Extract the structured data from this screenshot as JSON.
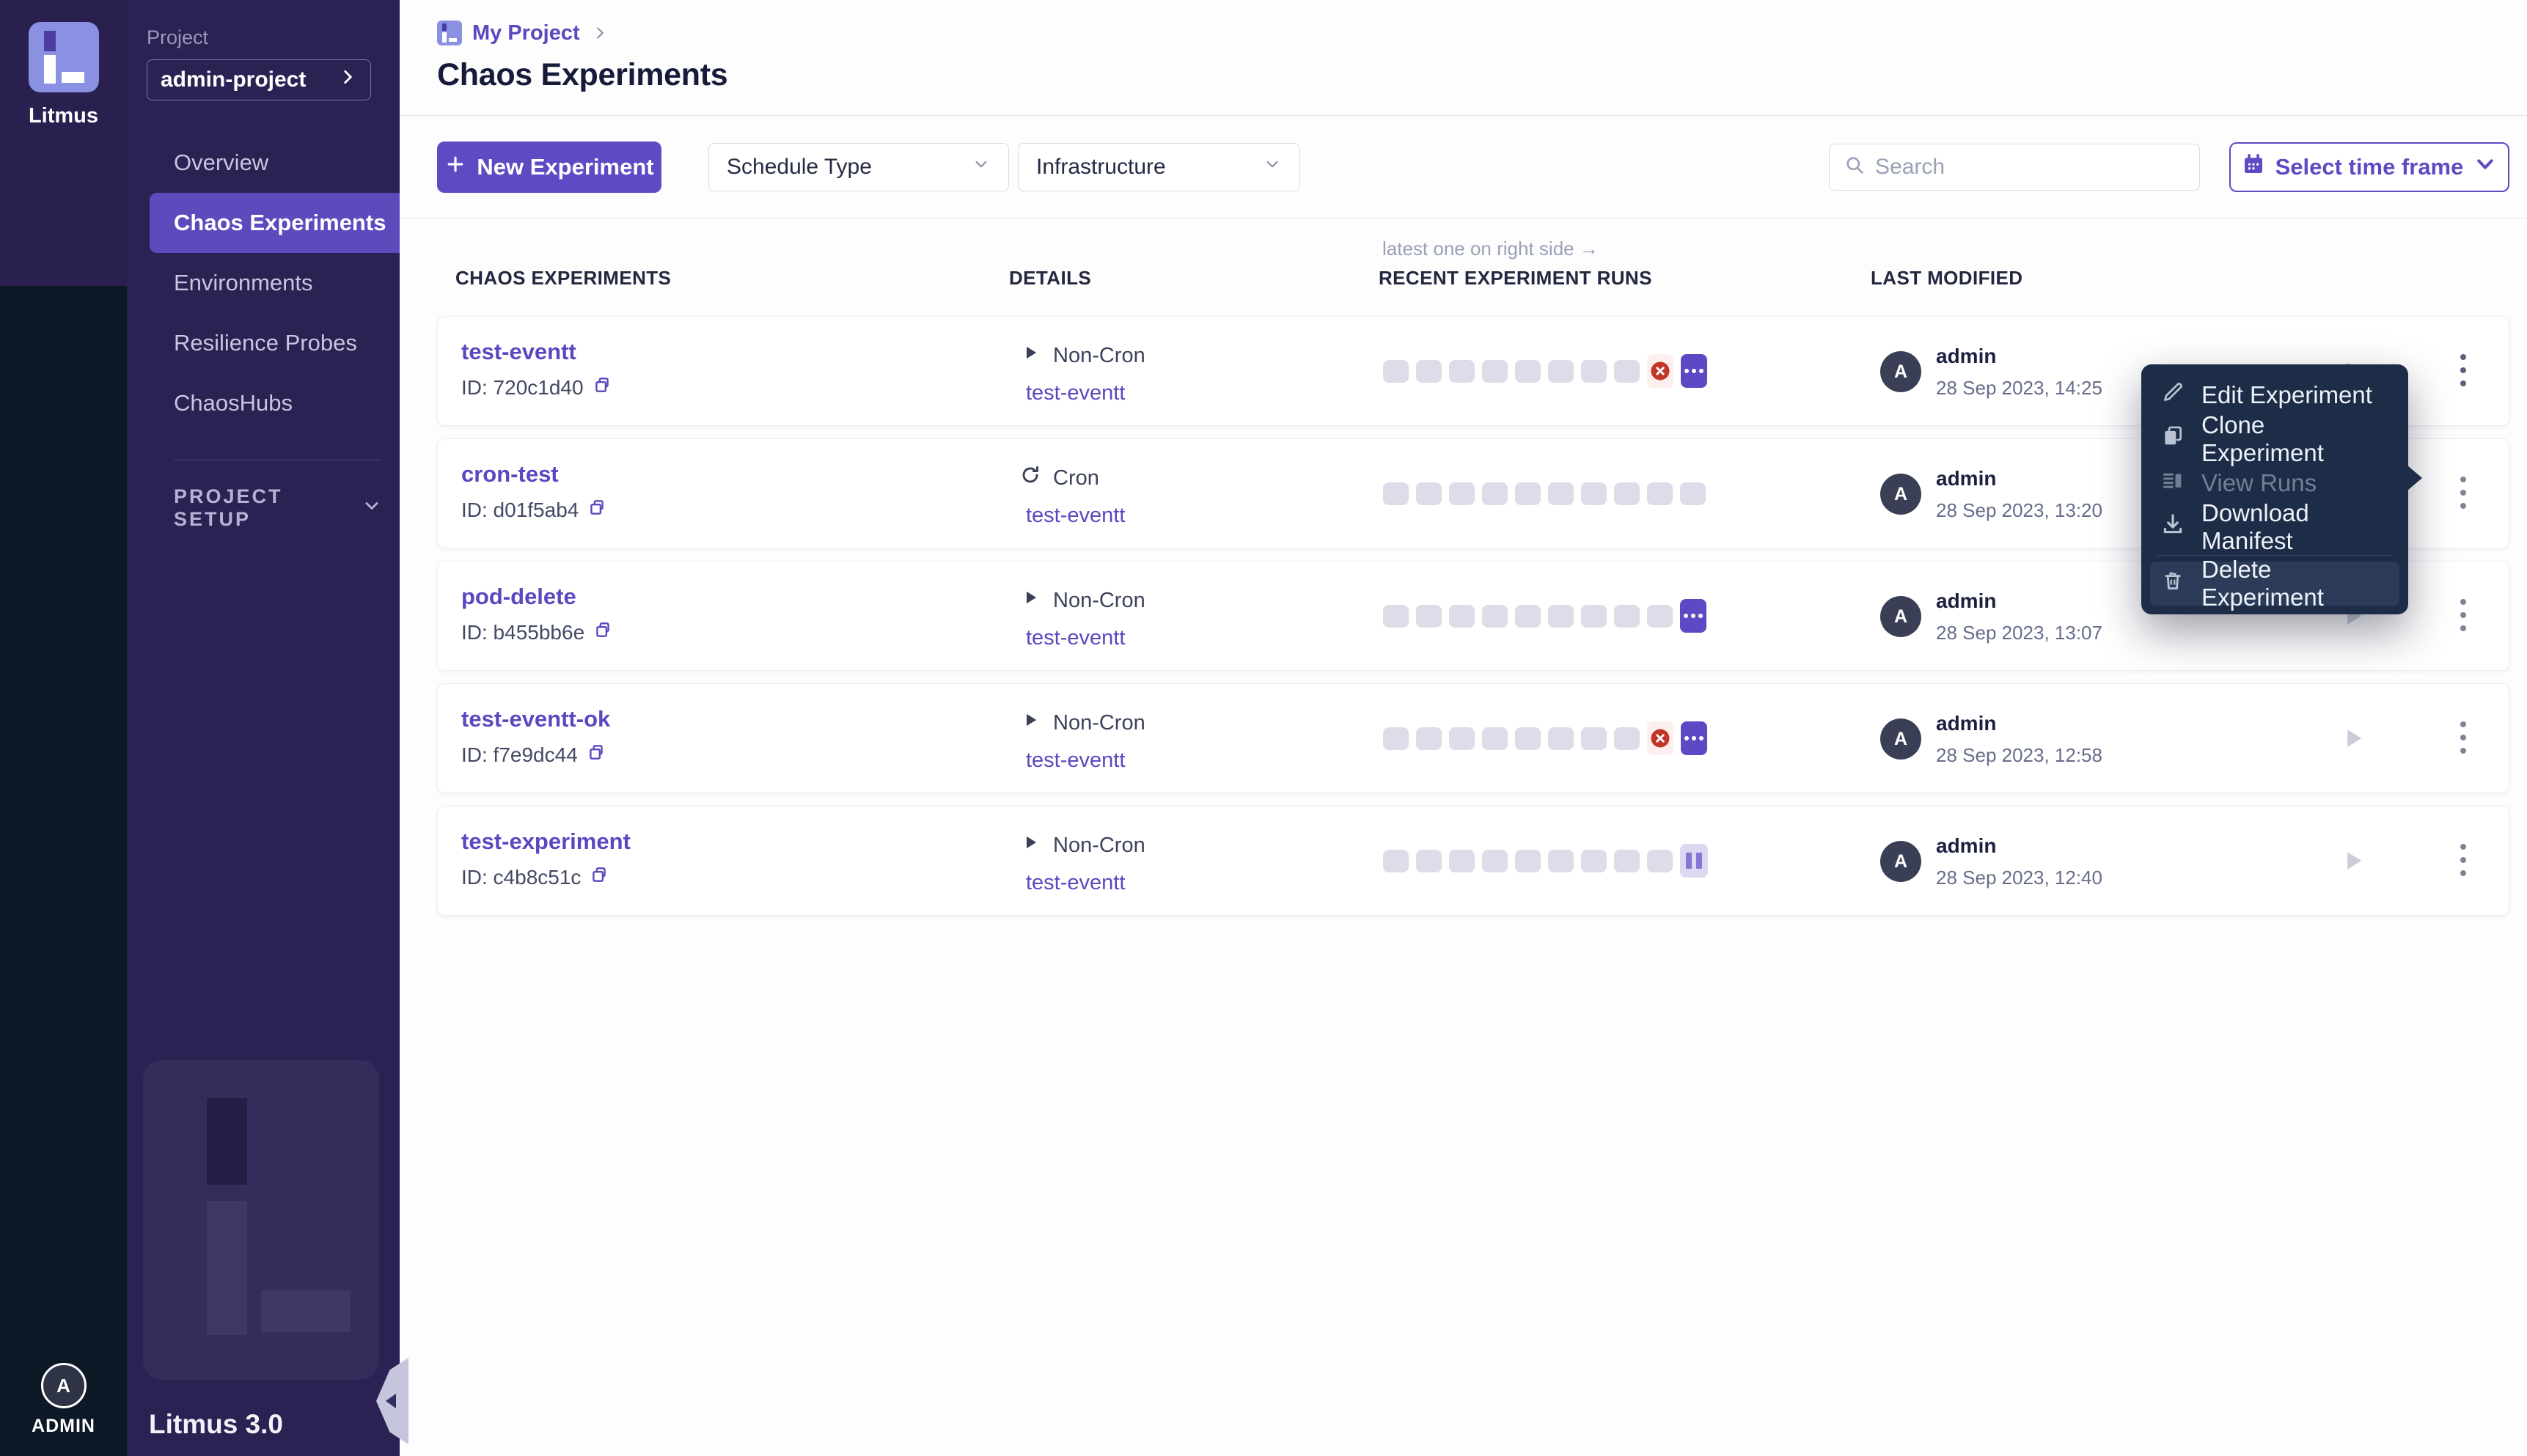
{
  "colors": {
    "accent": "#5d4bc4",
    "link": "#5a48c0",
    "sidebar_bg": "#2b2153",
    "strip_top_bg": "#2a2050",
    "strip_bottom_bg": "#0d1826",
    "nav_active_bg": "#5d4bbd",
    "logo_bg": "#8a90e2",
    "menu_bg": "#1e2d47",
    "menu_hover_bg": "#2c3c58",
    "failed_red": "#c23527",
    "failed_bg": "#fdefed",
    "running_bg": "#5d49c4",
    "paused_bg": "#ddd8f2",
    "paused_bar": "#8378d2",
    "run_empty": "#dcdde8"
  },
  "sidebar": {
    "brand": "Litmus",
    "project_label": "Project",
    "project_value": "admin-project",
    "nav_items": [
      {
        "label": "Overview",
        "active": false
      },
      {
        "label": "Chaos Experiments",
        "active": true
      },
      {
        "label": "Environments",
        "active": false
      },
      {
        "label": "Resilience Probes",
        "active": false
      },
      {
        "label": "ChaosHubs",
        "active": false
      }
    ],
    "project_setup_label": "PROJECT SETUP",
    "version": "Litmus 3.0",
    "user_initial": "A",
    "user_label": "ADMIN"
  },
  "header": {
    "breadcrumb": "My Project",
    "title": "Chaos Experiments"
  },
  "toolbar": {
    "new_experiment_label": "New Experiment",
    "schedule_type_label": "Schedule Type",
    "infrastructure_label": "Infrastructure",
    "search_placeholder": "Search",
    "time_frame_label": "Select time frame"
  },
  "table": {
    "runs_note": "latest one on right side →",
    "columns": [
      "CHAOS EXPERIMENTS",
      "DETAILS",
      "RECENT EXPERIMENT RUNS",
      "LAST MODIFIED"
    ],
    "rows": [
      {
        "name": "test-eventt",
        "id": "ID: 720c1d40",
        "schedule": "Non-Cron",
        "infra_link": "test-eventt",
        "runs": [
          "empty",
          "empty",
          "empty",
          "empty",
          "empty",
          "empty",
          "empty",
          "empty",
          "failed",
          "running"
        ],
        "avatar_initial": "A",
        "modified_by": "admin",
        "modified_at": "28 Sep 2023, 14:25"
      },
      {
        "name": "cron-test",
        "id": "ID: d01f5ab4",
        "schedule": "Cron",
        "infra_link": "test-eventt",
        "runs": [
          "empty",
          "empty",
          "empty",
          "empty",
          "empty",
          "empty",
          "empty",
          "empty",
          "empty",
          "empty"
        ],
        "avatar_initial": "A",
        "modified_by": "admin",
        "modified_at": "28 Sep 2023, 13:20"
      },
      {
        "name": "pod-delete",
        "id": "ID: b455bb6e",
        "schedule": "Non-Cron",
        "infra_link": "test-eventt",
        "runs": [
          "empty",
          "empty",
          "empty",
          "empty",
          "empty",
          "empty",
          "empty",
          "empty",
          "empty",
          "running"
        ],
        "avatar_initial": "A",
        "modified_by": "admin",
        "modified_at": "28 Sep 2023, 13:07"
      },
      {
        "name": "test-eventt-ok",
        "id": "ID: f7e9dc44",
        "schedule": "Non-Cron",
        "infra_link": "test-eventt",
        "runs": [
          "empty",
          "empty",
          "empty",
          "empty",
          "empty",
          "empty",
          "empty",
          "empty",
          "failed",
          "running"
        ],
        "avatar_initial": "A",
        "modified_by": "admin",
        "modified_at": "28 Sep 2023, 12:58"
      },
      {
        "name": "test-experiment",
        "id": "ID: c4b8c51c",
        "schedule": "Non-Cron",
        "infra_link": "test-eventt",
        "runs": [
          "empty",
          "empty",
          "empty",
          "empty",
          "empty",
          "empty",
          "empty",
          "empty",
          "empty",
          "paused"
        ],
        "avatar_initial": "A",
        "modified_by": "admin",
        "modified_at": "28 Sep 2023, 12:40"
      }
    ]
  },
  "context_menu": {
    "items": [
      {
        "label": "Edit Experiment",
        "disabled": false
      },
      {
        "label": "Clone Experiment",
        "disabled": false
      },
      {
        "label": "View Runs",
        "disabled": true
      },
      {
        "label": "Download Manifest",
        "disabled": false
      },
      {
        "label": "Delete Experiment",
        "disabled": false
      }
    ]
  }
}
